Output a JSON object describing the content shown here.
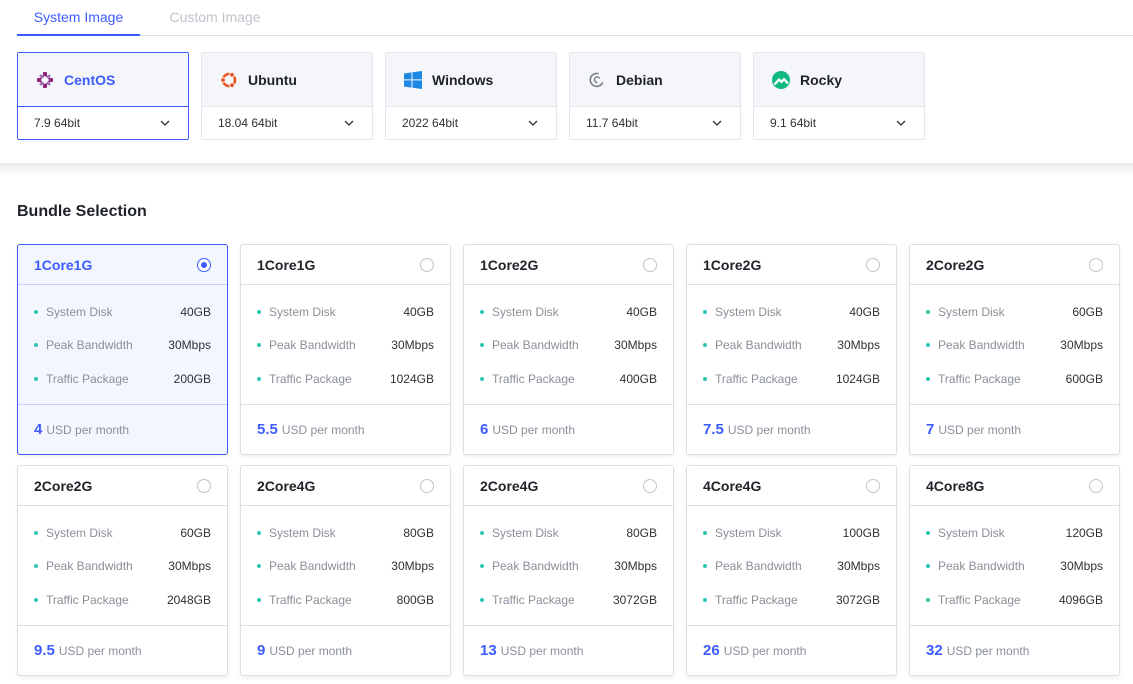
{
  "tabs": {
    "system_label": "System Image",
    "custom_label": "Custom Image"
  },
  "os_images": [
    {
      "name": "CentOS",
      "version": "7.9 64bit",
      "icon": "centos-logo-icon",
      "selected": true
    },
    {
      "name": "Ubuntu",
      "version": "18.04 64bit",
      "icon": "ubuntu-logo-icon",
      "selected": false
    },
    {
      "name": "Windows",
      "version": "2022 64bit",
      "icon": "windows-logo-icon",
      "selected": false
    },
    {
      "name": "Debian",
      "version": "11.7 64bit",
      "icon": "debian-logo-icon",
      "selected": false
    },
    {
      "name": "Rocky",
      "version": "9.1 64bit",
      "icon": "rocky-logo-icon",
      "selected": false
    }
  ],
  "bundle": {
    "title": "Bundle Selection",
    "price_unit": "USD per month",
    "spec_labels": {
      "disk": "System Disk",
      "bandwidth": "Peak Bandwidth",
      "traffic": "Traffic Package"
    },
    "plans": [
      {
        "name": "1Core1G",
        "disk": "40GB",
        "bandwidth": "30Mbps",
        "traffic": "200GB",
        "price": "4",
        "selected": true
      },
      {
        "name": "1Core1G",
        "disk": "40GB",
        "bandwidth": "30Mbps",
        "traffic": "1024GB",
        "price": "5.5",
        "selected": false
      },
      {
        "name": "1Core2G",
        "disk": "40GB",
        "bandwidth": "30Mbps",
        "traffic": "400GB",
        "price": "6",
        "selected": false
      },
      {
        "name": "1Core2G",
        "disk": "40GB",
        "bandwidth": "30Mbps",
        "traffic": "1024GB",
        "price": "7.5",
        "selected": false
      },
      {
        "name": "2Core2G",
        "disk": "60GB",
        "bandwidth": "30Mbps",
        "traffic": "600GB",
        "price": "7",
        "selected": false
      },
      {
        "name": "2Core2G",
        "disk": "60GB",
        "bandwidth": "30Mbps",
        "traffic": "2048GB",
        "price": "9.5",
        "selected": false
      },
      {
        "name": "2Core4G",
        "disk": "80GB",
        "bandwidth": "30Mbps",
        "traffic": "800GB",
        "price": "9",
        "selected": false
      },
      {
        "name": "2Core4G",
        "disk": "80GB",
        "bandwidth": "30Mbps",
        "traffic": "3072GB",
        "price": "13",
        "selected": false
      },
      {
        "name": "4Core4G",
        "disk": "100GB",
        "bandwidth": "30Mbps",
        "traffic": "3072GB",
        "price": "26",
        "selected": false
      },
      {
        "name": "4Core8G",
        "disk": "120GB",
        "bandwidth": "30Mbps",
        "traffic": "4096GB",
        "price": "32",
        "selected": false
      }
    ]
  },
  "colors": {
    "accent": "#3d5cff",
    "spec_dot": "#30c4b2",
    "centos": "#932279",
    "ubuntu": "#e95420",
    "windows": "#1e88e5",
    "debian": "#7a7f88",
    "rocky": "#10b981"
  }
}
